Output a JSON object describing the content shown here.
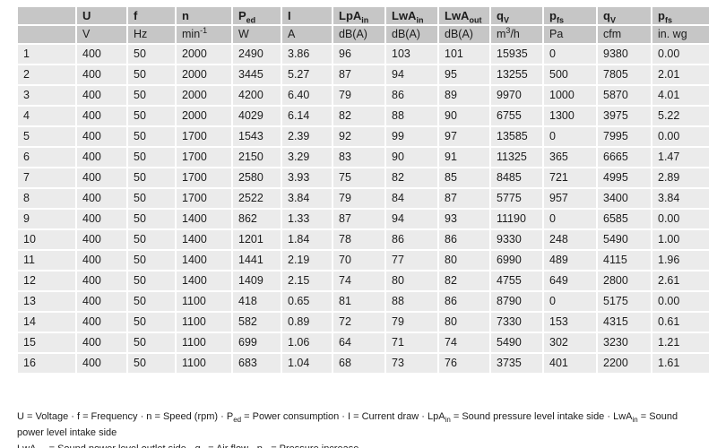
{
  "colors": {
    "header-bg": "#c6c6c6",
    "cell-bg": "#ebebeb",
    "text": "#1c1c1c",
    "page-bg": "#ffffff"
  },
  "table": {
    "columns": [
      {
        "label": "",
        "sub": "",
        "unit": "",
        "unit_sup": "",
        "unit_post": ""
      },
      {
        "label": "U",
        "sub": "",
        "unit": "V",
        "unit_sup": "",
        "unit_post": ""
      },
      {
        "label": "f",
        "sub": "",
        "unit": "Hz",
        "unit_sup": "",
        "unit_post": ""
      },
      {
        "label": "n",
        "sub": "",
        "unit": "min",
        "unit_sup": "-1",
        "unit_post": ""
      },
      {
        "label": "P",
        "sub": "ed",
        "unit": "W",
        "unit_sup": "",
        "unit_post": ""
      },
      {
        "label": "I",
        "sub": "",
        "unit": "A",
        "unit_sup": "",
        "unit_post": ""
      },
      {
        "label": "LpA",
        "sub": "in",
        "unit": "dB(A)",
        "unit_sup": "",
        "unit_post": ""
      },
      {
        "label": "LwA",
        "sub": "in",
        "unit": "dB(A)",
        "unit_sup": "",
        "unit_post": ""
      },
      {
        "label": "LwA",
        "sub": "out",
        "unit": "dB(A)",
        "unit_sup": "",
        "unit_post": ""
      },
      {
        "label": "q",
        "sub": "V",
        "unit": "m",
        "unit_sup": "3",
        "unit_post": "/h"
      },
      {
        "label": "p",
        "sub": "fs",
        "unit": "Pa",
        "unit_sup": "",
        "unit_post": ""
      },
      {
        "label": "q",
        "sub": "V",
        "unit": "cfm",
        "unit_sup": "",
        "unit_post": ""
      },
      {
        "label": "p",
        "sub": "fs",
        "unit": "in. wg",
        "unit_sup": "",
        "unit_post": ""
      }
    ],
    "rows": [
      [
        "1",
        "400",
        "50",
        "2000",
        "2490",
        "3.86",
        "96",
        "103",
        "101",
        "15935",
        "0",
        "9380",
        "0.00"
      ],
      [
        "2",
        "400",
        "50",
        "2000",
        "3445",
        "5.27",
        "87",
        "94",
        "95",
        "13255",
        "500",
        "7805",
        "2.01"
      ],
      [
        "3",
        "400",
        "50",
        "2000",
        "4200",
        "6.40",
        "79",
        "86",
        "89",
        "9970",
        "1000",
        "5870",
        "4.01"
      ],
      [
        "4",
        "400",
        "50",
        "2000",
        "4029",
        "6.14",
        "82",
        "88",
        "90",
        "6755",
        "1300",
        "3975",
        "5.22"
      ],
      [
        "5",
        "400",
        "50",
        "1700",
        "1543",
        "2.39",
        "92",
        "99",
        "97",
        "13585",
        "0",
        "7995",
        "0.00"
      ],
      [
        "6",
        "400",
        "50",
        "1700",
        "2150",
        "3.29",
        "83",
        "90",
        "91",
        "11325",
        "365",
        "6665",
        "1.47"
      ],
      [
        "7",
        "400",
        "50",
        "1700",
        "2580",
        "3.93",
        "75",
        "82",
        "85",
        "8485",
        "721",
        "4995",
        "2.89"
      ],
      [
        "8",
        "400",
        "50",
        "1700",
        "2522",
        "3.84",
        "79",
        "84",
        "87",
        "5775",
        "957",
        "3400",
        "3.84"
      ],
      [
        "9",
        "400",
        "50",
        "1400",
        "862",
        "1.33",
        "87",
        "94",
        "93",
        "11190",
        "0",
        "6585",
        "0.00"
      ],
      [
        "10",
        "400",
        "50",
        "1400",
        "1201",
        "1.84",
        "78",
        "86",
        "86",
        "9330",
        "248",
        "5490",
        "1.00"
      ],
      [
        "11",
        "400",
        "50",
        "1400",
        "1441",
        "2.19",
        "70",
        "77",
        "80",
        "6990",
        "489",
        "4115",
        "1.96"
      ],
      [
        "12",
        "400",
        "50",
        "1400",
        "1409",
        "2.15",
        "74",
        "80",
        "82",
        "4755",
        "649",
        "2800",
        "2.61"
      ],
      [
        "13",
        "400",
        "50",
        "1100",
        "418",
        "0.65",
        "81",
        "88",
        "86",
        "8790",
        "0",
        "5175",
        "0.00"
      ],
      [
        "14",
        "400",
        "50",
        "1100",
        "582",
        "0.89",
        "72",
        "79",
        "80",
        "7330",
        "153",
        "4315",
        "0.61"
      ],
      [
        "15",
        "400",
        "50",
        "1100",
        "699",
        "1.06",
        "64",
        "71",
        "74",
        "5490",
        "302",
        "3230",
        "1.21"
      ],
      [
        "16",
        "400",
        "50",
        "1100",
        "683",
        "1.04",
        "68",
        "73",
        "76",
        "3735",
        "401",
        "2200",
        "1.61"
      ]
    ]
  },
  "footnotes": {
    "line1": [
      {
        "t": "U = Voltage · f = Frequency · n = Speed (rpm) · P"
      },
      {
        "sub": "ed"
      },
      {
        "t": " = Power consumption · I = Current draw · LpA"
      },
      {
        "sub": "in"
      },
      {
        "t": " = Sound pressure level intake side · LwA"
      },
      {
        "sub": "in"
      },
      {
        "t": " = Sound power level intake side"
      }
    ],
    "line2": [
      {
        "t": "LwA"
      },
      {
        "sub": "out"
      },
      {
        "t": " = Sound power level outlet side · q"
      },
      {
        "sub": "V"
      },
      {
        "t": " = Air flow · p"
      },
      {
        "sub": "fs"
      },
      {
        "t": " = Pressure increase"
      }
    ]
  }
}
